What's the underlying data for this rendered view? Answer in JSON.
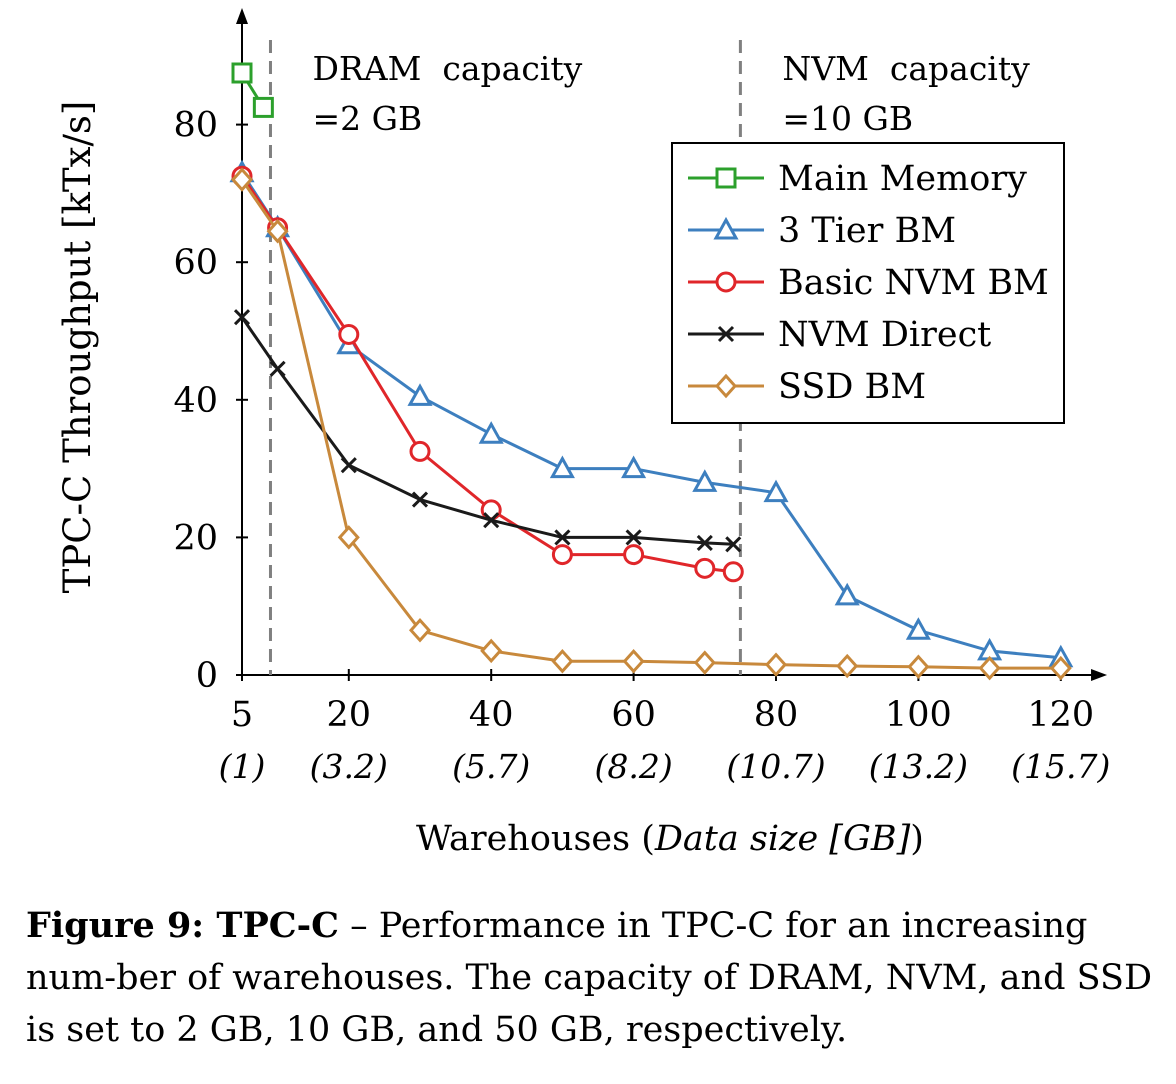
{
  "chart_data": {
    "type": "line",
    "xlabel": "Warehouses (",
    "xlabel_italic": "Data size [GB]",
    "xlabel_close": ")",
    "ylabel": "TPC-C Throughput [kTx/s]",
    "xlim": [
      5,
      122
    ],
    "ylim": [
      0,
      90
    ],
    "x_ticks": [
      5,
      20,
      40,
      60,
      80,
      100,
      120
    ],
    "x_tick_labels": [
      "5",
      "20",
      "40",
      "60",
      "80",
      "100",
      "120"
    ],
    "x_sub_labels": [
      "(1)",
      "(3.2)",
      "(5.7)",
      "(8.2)",
      "(10.7)",
      "(13.2)",
      "(15.7)"
    ],
    "y_ticks": [
      0,
      20,
      40,
      60,
      80
    ],
    "y_tick_labels": [
      "0",
      "20",
      "40",
      "60",
      "80"
    ],
    "grid": false,
    "legend_position": "top-right",
    "annotations": [
      {
        "x": 9,
        "lines": [
          "DRAM  capacity",
          "=2 GB"
        ]
      },
      {
        "x": 75,
        "lines": [
          "NVM  capacity",
          "=10 GB"
        ]
      }
    ],
    "series": [
      {
        "name": "Main Memory",
        "color": "#2ca02c",
        "marker": "square",
        "x": [
          5,
          8
        ],
        "y": [
          87.5,
          82.5
        ]
      },
      {
        "name": "3 Tier BM",
        "color": "#3d7fbf",
        "marker": "triangle",
        "x": [
          5,
          10,
          20,
          30,
          40,
          50,
          60,
          70,
          80,
          90,
          100,
          110,
          120
        ],
        "y": [
          73,
          65,
          48,
          40.5,
          35,
          30,
          30,
          28,
          26.5,
          11.5,
          6.5,
          3.5,
          2.5
        ]
      },
      {
        "name": "Basic NVM BM",
        "color": "#e0262a",
        "marker": "circle",
        "x": [
          5,
          10,
          20,
          30,
          40,
          50,
          60,
          70,
          74
        ],
        "y": [
          72.5,
          65,
          49.5,
          32.5,
          24,
          17.5,
          17.5,
          15.5,
          15
        ]
      },
      {
        "name": "NVM Direct",
        "color": "#1a1a1a",
        "marker": "cross",
        "x": [
          5,
          10,
          20,
          30,
          40,
          50,
          60,
          70,
          74
        ],
        "y": [
          52,
          44.5,
          30.5,
          25.5,
          22.5,
          20,
          20,
          19.2,
          19
        ]
      },
      {
        "name": "SSD BM",
        "color": "#c8893c",
        "marker": "diamond",
        "x": [
          5,
          10,
          20,
          30,
          40,
          50,
          60,
          70,
          80,
          90,
          100,
          110,
          120
        ],
        "y": [
          72,
          64.5,
          20,
          6.5,
          3.5,
          2,
          2,
          1.8,
          1.5,
          1.3,
          1.2,
          1,
          1
        ]
      }
    ]
  },
  "caption": {
    "label": "Figure 9: TPC-C",
    "text": " – Performance in TPC-C for an increasing num-ber of warehouses. The capacity of DRAM, NVM, and SSD is set to 2 GB, 10 GB, and 50 GB, respectively."
  }
}
